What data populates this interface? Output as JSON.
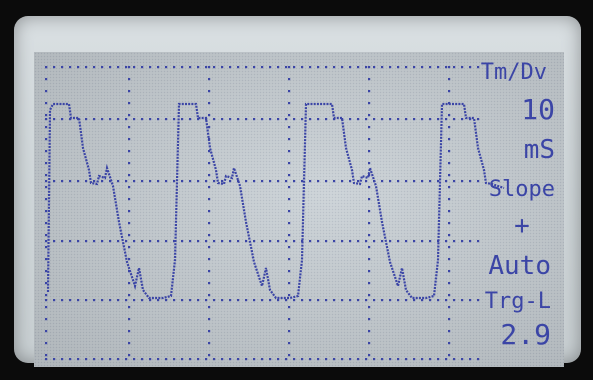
{
  "device": {
    "type": "oscilloscope LCD",
    "colors": {
      "screen_bg": "#c9d0d5",
      "bezel": "#d4dadc",
      "trace": "#3b45a6",
      "grid_dots": "#3b45a6"
    }
  },
  "side_panel": {
    "timebase_label": "Tm/Dv",
    "timebase_value": "10",
    "timebase_unit": "mS",
    "slope_label": "Slope",
    "slope_value": "+",
    "trigger_mode": "Auto",
    "trigger_level_label": "Trg-L",
    "trigger_level_value": "2.9"
  },
  "waveform": {
    "description_shape": "periodic square-like pulses with stepped decay",
    "cycles_visible": 4,
    "x_divisions": 8
  }
}
